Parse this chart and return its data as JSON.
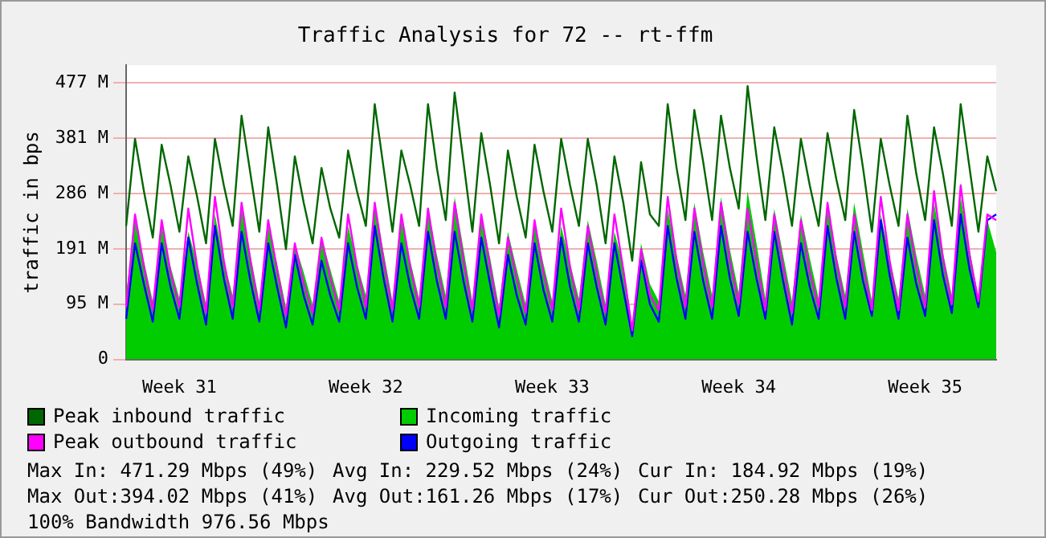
{
  "chart_data": {
    "type": "line",
    "title": "Traffic Analysis for 72 -- rt-ffm",
    "ylabel": "traffic in bps",
    "categories": [
      null,
      null,
      null,
      null,
      null,
      null,
      "Week 31",
      null,
      null,
      null,
      null,
      null,
      null,
      null,
      null,
      null,
      null,
      null,
      null,
      null,
      null,
      null,
      null,
      null,
      null,
      null,
      null,
      "Week 32",
      null,
      null,
      null,
      null,
      null,
      null,
      null,
      null,
      null,
      null,
      null,
      null,
      null,
      null,
      null,
      null,
      null,
      null,
      null,
      null,
      "Week 33",
      null,
      null,
      null,
      null,
      null,
      null,
      null,
      null,
      null,
      null,
      null,
      null,
      null,
      null,
      null,
      null,
      null,
      null,
      null,
      null,
      "Week 34",
      null,
      null,
      null,
      null,
      null,
      null,
      null,
      null,
      null,
      null,
      null,
      null,
      null,
      null,
      null,
      null,
      null,
      null,
      null,
      null,
      "Week 35",
      null,
      null,
      null,
      null,
      null,
      null,
      null,
      null
    ],
    "ylim": [
      0,
      507
    ],
    "yticks": [
      0,
      {
        "value": 95.4,
        "label": "95 M"
      },
      {
        "value": 190.7,
        "label": "191 M"
      },
      {
        "value": 286.1,
        "label": "286 M"
      },
      {
        "value": 381.5,
        "label": "381 M"
      },
      {
        "value": 476.8,
        "label": "477 M"
      }
    ],
    "grid": "y",
    "legend": "bottom",
    "marker": "none",
    "line_style": "solid",
    "series": [
      {
        "name": "Peak inbound traffic",
        "color": "#006600",
        "values": [
          230,
          380,
          290,
          210,
          370,
          300,
          220,
          350,
          280,
          200,
          380,
          300,
          230,
          420,
          320,
          220,
          400,
          300,
          190,
          350,
          270,
          200,
          330,
          260,
          210,
          360,
          290,
          230,
          440,
          330,
          220,
          360,
          300,
          230,
          440,
          330,
          240,
          460,
          340,
          220,
          390,
          300,
          200,
          360,
          280,
          210,
          370,
          290,
          220,
          380,
          300,
          230,
          380,
          300,
          200,
          350,
          270,
          170,
          340,
          250,
          230,
          440,
          330,
          240,
          430,
          340,
          240,
          420,
          330,
          260,
          471,
          350,
          240,
          400,
          320,
          230,
          380,
          300,
          230,
          390,
          310,
          240,
          430,
          330,
          220,
          380,
          300,
          230,
          420,
          320,
          240,
          400,
          320,
          230,
          440,
          330,
          220,
          350,
          290
        ]
      },
      {
        "name": "Incoming traffic",
        "type": "area",
        "color": "#00cc00",
        "values": [
          110,
          240,
          170,
          100,
          230,
          160,
          105,
          220,
          165,
          95,
          250,
          170,
          110,
          260,
          180,
          100,
          230,
          165,
          90,
          200,
          150,
          95,
          210,
          155,
          100,
          230,
          165,
          110,
          270,
          185,
          100,
          240,
          170,
          105,
          260,
          180,
          110,
          280,
          190,
          100,
          250,
          175,
          90,
          220,
          155,
          95,
          240,
          165,
          100,
          230,
          165,
          105,
          240,
          170,
          95,
          220,
          160,
          60,
          200,
          130,
          100,
          260,
          180,
          110,
          270,
          185,
          110,
          280,
          190,
          115,
          290,
          200,
          105,
          260,
          180,
          100,
          250,
          175,
          105,
          260,
          180,
          110,
          270,
          185,
          100,
          250,
          175,
          105,
          260,
          180,
          110,
          270,
          185,
          110,
          280,
          190,
          105,
          240,
          185
        ]
      },
      {
        "name": "Peak outbound traffic",
        "color": "#ff00ff",
        "values": [
          90,
          250,
          160,
          85,
          240,
          150,
          90,
          260,
          160,
          80,
          280,
          170,
          90,
          270,
          170,
          85,
          240,
          155,
          75,
          200,
          130,
          80,
          210,
          140,
          85,
          250,
          160,
          90,
          270,
          170,
          85,
          250,
          160,
          90,
          260,
          165,
          90,
          270,
          170,
          85,
          250,
          160,
          75,
          210,
          140,
          80,
          240,
          150,
          85,
          260,
          160,
          85,
          230,
          150,
          80,
          250,
          155,
          50,
          190,
          110,
          85,
          280,
          170,
          90,
          260,
          165,
          90,
          270,
          170,
          95,
          260,
          170,
          85,
          250,
          160,
          80,
          240,
          150,
          90,
          270,
          170,
          90,
          250,
          160,
          85,
          280,
          170,
          85,
          250,
          160,
          90,
          290,
          175,
          95,
          300,
          180,
          100,
          250,
          240
        ]
      },
      {
        "name": "Outgoing traffic",
        "color": "#0000ff",
        "values": [
          70,
          200,
          130,
          65,
          200,
          125,
          70,
          210,
          130,
          60,
          230,
          140,
          70,
          220,
          135,
          65,
          200,
          125,
          55,
          180,
          110,
          60,
          170,
          110,
          65,
          200,
          125,
          70,
          230,
          140,
          65,
          200,
          125,
          70,
          220,
          135,
          70,
          220,
          135,
          65,
          210,
          130,
          55,
          180,
          110,
          60,
          200,
          120,
          65,
          210,
          125,
          65,
          200,
          125,
          60,
          200,
          120,
          40,
          170,
          95,
          65,
          230,
          140,
          70,
          220,
          135,
          70,
          230,
          140,
          75,
          220,
          140,
          70,
          220,
          135,
          60,
          200,
          125,
          70,
          230,
          140,
          70,
          220,
          135,
          75,
          240,
          145,
          70,
          210,
          130,
          75,
          240,
          145,
          80,
          250,
          155,
          90,
          240,
          250
        ]
      }
    ],
    "annotations": [
      "Max In: 471.29 Mbps (49%)",
      "Avg In: 229.52 Mbps (24%)",
      "Cur In: 184.92 Mbps (19%)",
      "Max Out:394.02 Mbps (41%)",
      "Avg Out:161.26 Mbps (17%)",
      "Cur Out:250.28 Mbps (26%)",
      "100% Bandwidth 976.56 Mbps"
    ]
  }
}
